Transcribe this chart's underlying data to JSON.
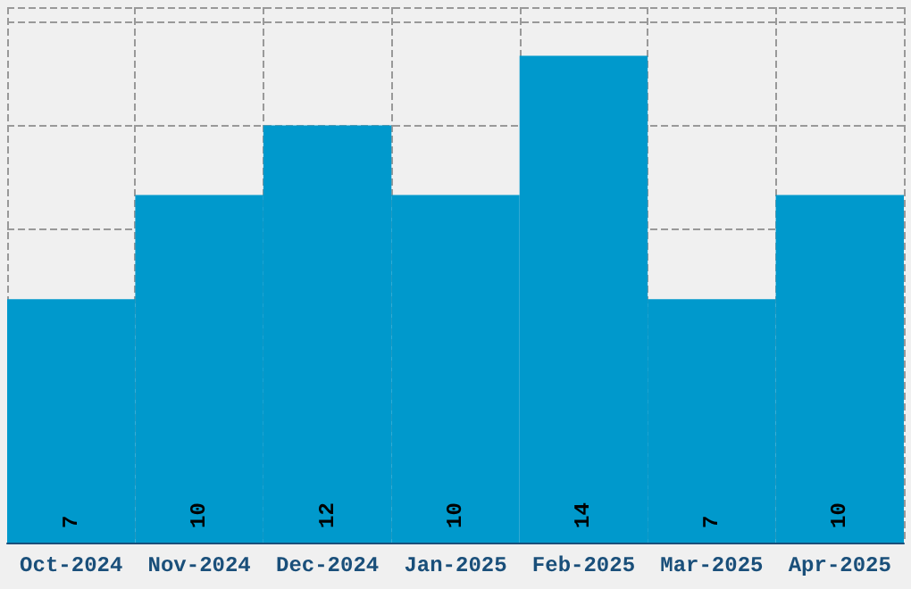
{
  "chart_data": {
    "type": "bar",
    "categories": [
      "Oct-2024",
      "Nov-2024",
      "Dec-2024",
      "Jan-2025",
      "Feb-2025",
      "Mar-2025",
      "Apr-2025"
    ],
    "values": [
      7,
      10,
      12,
      10,
      14,
      7,
      10
    ],
    "color": "#0099cc",
    "data_labels": true,
    "grid": true,
    "ylim": [
      0,
      15.4
    ],
    "tick_labels": "x"
  }
}
